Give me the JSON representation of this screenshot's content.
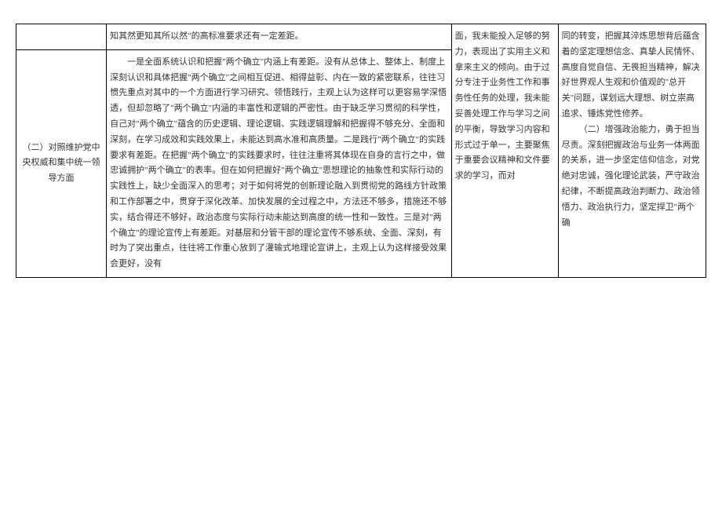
{
  "table": {
    "row1": {
      "col2": "知其然更知其所以然\"的高标准要求还有一定差距。"
    },
    "row2": {
      "col1": "（二）对照维护党中央权威和集中统一领导方面",
      "col2": "一是全面系统认识和把握\"两个确立\"内涵上有差距。没有从总体上、整体上、制度上深刻认识和具体把握\"两个确立\"之间相互促进、相得益彰、内在一致的紧密联系，往往习惯先重点对其中的一个方面进行学习研究、领悟践行，主观上认为这样可以更容易学深悟透，但却忽略了\"两个确立\"内涵的丰富性和逻辑的严密性。由于缺乏学习贯彻的科学性，自己对\"两个确立\"蕴含的历史逻辑、理论逻辑、实践逻辑理解和把握得不够充分、全面和深刻，在学习成效和实践效果上，未能达到高水准和高质量。二是践行\"两个确立\"的实践要求有差距。在把握\"两个确立\"的实践要求时，往往注重将其体现在自身的言行之中，做忠诚拥护\"两个确立\"的表率。但在如何把握好\"两个确立\"思想理论的抽象性和实际行动的实践性上，缺少全面深入的思考；对于如何将党的创新理论融入到贯彻党的路线方针政策和工作部署之中，贯穿于深化改革、加快发展的全过程之中，方法还不够多，措施还不够实，结合得还不够好，政治态度与实际行动未能达到高度的统一性和一致性。三是对\"两个确立\"的理论宣传上有差距。对基层和分管干部的理论宣传不够系统、全面、深刻，有时为了突出重点，往往将工作重心放到了灌输式地理论宣讲上，主观上认为这样接受效果会更好，没有"
    },
    "col3_merged": "面，我未能投入足够的努力，表现出了实用主义和拿来主义的倾向。由于过分专注于业务性工作和事务性任务的处理，我未能妥善处理工作与学习之间的平衡，导致学习内容和形式过于单一，主要聚焦于重要会议精神和文件要求的学习，而对",
    "col4_merged_p1": "同的转变，把握其淬炼思想背后蕴含着的坚定理想信念、真挚人民情怀、高度自觉自信、无畏担当精神，解决好世界观人生观和价值观的\"总开关\"问题，谋划远大理想、树立崇高追求、锤炼党性修养。",
    "col4_merged_p2": "（二）增强政治能力，勇于担当尽责。深刻把握政治与业务一体两面的关系，进一步坚定信仰信念，对党绝对忠诚，强化理论武装，严守政治纪律，不断提高政治判断力、政治领悟力、政治执行力，坚定捍卫\"两个确"
  }
}
